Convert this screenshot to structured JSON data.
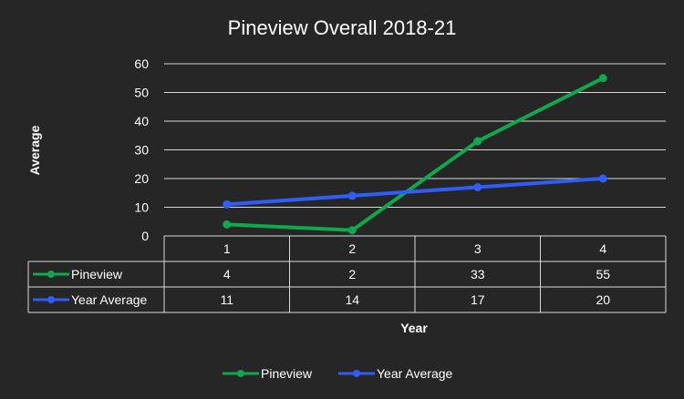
{
  "chart_data": {
    "type": "line",
    "title": "Pineview Overall 2018-21",
    "xlabel": "Year",
    "ylabel": "Average",
    "categories": [
      "1",
      "2",
      "3",
      "4"
    ],
    "ylim": [
      0,
      60
    ],
    "yticks": [
      0,
      10,
      20,
      30,
      40,
      50,
      60
    ],
    "grid": true,
    "legend_position": "bottom",
    "data_table": true,
    "series": [
      {
        "name": "Pineview",
        "values": [
          4,
          2,
          33,
          55
        ],
        "color": "#0fa84a"
      },
      {
        "name": "Year Average",
        "values": [
          11,
          14,
          17,
          20
        ],
        "color": "#2f5df5"
      }
    ]
  }
}
